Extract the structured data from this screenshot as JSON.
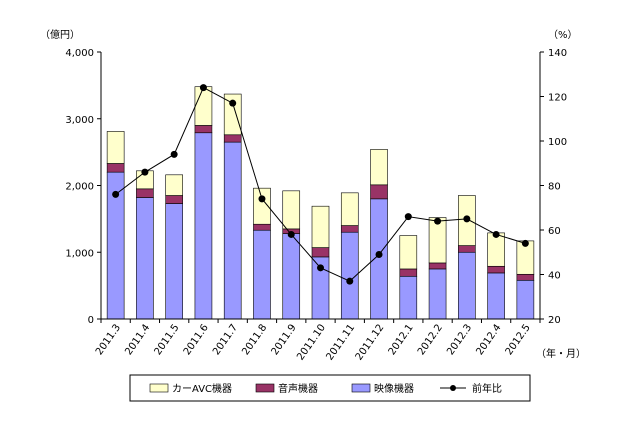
{
  "chart_data": {
    "type": "bar",
    "stacked": true,
    "categories": [
      "2011.3",
      "2011.4",
      "2011.5",
      "2011.6",
      "2011.7",
      "2011.8",
      "2011.9",
      "2011.10",
      "2011.11",
      "2011.12",
      "2012.1",
      "2012.2",
      "2012.3",
      "2012.4",
      "2012.5"
    ],
    "series": [
      {
        "name": "映像機器",
        "axis": "left",
        "color": "#9999ff",
        "values": [
          2200,
          1820,
          1730,
          2790,
          2650,
          1330,
          1280,
          930,
          1300,
          1800,
          640,
          750,
          1000,
          690,
          580
        ]
      },
      {
        "name": "音声機器",
        "axis": "left",
        "color": "#993366",
        "values": [
          130,
          130,
          120,
          110,
          110,
          90,
          70,
          140,
          100,
          210,
          110,
          90,
          100,
          100,
          90
        ]
      },
      {
        "name": "カーAVC機器",
        "axis": "left",
        "color": "#ffffcc",
        "values": [
          480,
          270,
          310,
          580,
          610,
          540,
          570,
          620,
          490,
          530,
          500,
          680,
          750,
          500,
          500
        ]
      },
      {
        "name": "前年比",
        "axis": "right",
        "type": "line",
        "color": "#000000",
        "values": [
          76,
          86,
          94,
          124,
          117,
          74,
          58,
          43,
          37,
          49,
          66,
          64,
          65,
          58,
          54
        ]
      }
    ],
    "yleft": {
      "label": "（億円）",
      "min": 0,
      "max": 4000,
      "ticks": [
        "0",
        "1,000",
        "2,000",
        "3,000",
        "4,000"
      ]
    },
    "yright": {
      "label": "（%）",
      "min": 20,
      "max": 140,
      "ticks": [
        "20",
        "40",
        "60",
        "80",
        "100",
        "120",
        "140"
      ]
    },
    "xunit": "（年・月）",
    "legend": {
      "placement": "bottom",
      "entries": [
        "カーAVC機器",
        "音声機器",
        "映像機器",
        "前年比"
      ]
    }
  }
}
